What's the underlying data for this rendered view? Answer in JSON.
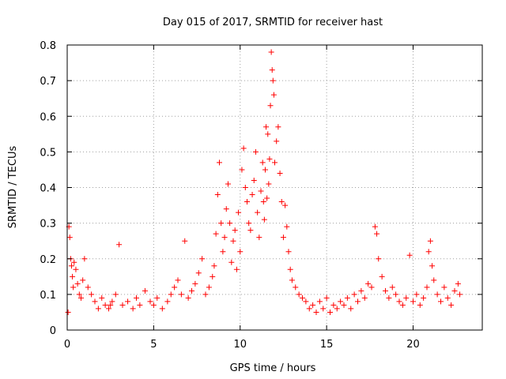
{
  "chart_data": {
    "type": "scatter",
    "title": "Day 015 of 2017, SRMTID for receiver hast",
    "xlabel": "GPS time / hours",
    "ylabel": "SRMTID / TECUs",
    "xlim": [
      0,
      24
    ],
    "ylim": [
      0,
      0.8
    ],
    "x_ticks": [
      0,
      5,
      10,
      15,
      20
    ],
    "x_tick_labels": [
      "0",
      "5",
      "10",
      "15",
      "20"
    ],
    "y_ticks": [
      0,
      0.1,
      0.2,
      0.3,
      0.4,
      0.5,
      0.6,
      0.7,
      0.8
    ],
    "y_tick_labels": [
      "0",
      "0.1",
      "0.2",
      "0.3",
      "0.4",
      "0.5",
      "0.6",
      "0.7",
      "0.8"
    ],
    "grid": true,
    "marker": "plus",
    "color": "#ff0000",
    "series": [
      {
        "name": "SRMTID",
        "x": [
          0.05,
          0.1,
          0.15,
          0.2,
          0.25,
          0.3,
          0.35,
          0.4,
          0.5,
          0.6,
          0.7,
          0.8,
          0.9,
          1.0,
          1.2,
          1.4,
          1.6,
          1.8,
          2.0,
          2.2,
          2.4,
          2.5,
          2.6,
          2.8,
          3.0,
          3.2,
          3.5,
          3.8,
          4.0,
          4.2,
          4.5,
          4.8,
          5.0,
          5.2,
          5.5,
          5.8,
          6.0,
          6.2,
          6.4,
          6.6,
          6.8,
          7.0,
          7.2,
          7.4,
          7.6,
          7.8,
          8.0,
          8.2,
          8.4,
          8.5,
          8.6,
          8.7,
          8.8,
          8.9,
          9.0,
          9.1,
          9.2,
          9.3,
          9.4,
          9.5,
          9.6,
          9.7,
          9.8,
          9.9,
          10.0,
          10.1,
          10.2,
          10.3,
          10.4,
          10.5,
          10.6,
          10.7,
          10.8,
          10.9,
          11.0,
          11.1,
          11.2,
          11.3,
          11.35,
          11.4,
          11.45,
          11.5,
          11.55,
          11.6,
          11.65,
          11.7,
          11.75,
          11.8,
          11.85,
          11.9,
          11.95,
          12.0,
          12.1,
          12.2,
          12.3,
          12.4,
          12.5,
          12.6,
          12.7,
          12.8,
          12.9,
          13.0,
          13.2,
          13.4,
          13.6,
          13.8,
          14.0,
          14.2,
          14.4,
          14.6,
          14.8,
          15.0,
          15.2,
          15.4,
          15.6,
          15.8,
          16.0,
          16.2,
          16.4,
          16.6,
          16.8,
          17.0,
          17.2,
          17.4,
          17.6,
          17.8,
          17.9,
          18.0,
          18.2,
          18.4,
          18.6,
          18.8,
          19.0,
          19.2,
          19.4,
          19.6,
          19.8,
          20.0,
          20.2,
          20.4,
          20.6,
          20.8,
          20.9,
          21.0,
          21.1,
          21.2,
          21.4,
          21.6,
          21.8,
          22.0,
          22.2,
          22.4,
          22.6,
          22.7
        ],
        "y": [
          0.05,
          0.29,
          0.26,
          0.2,
          0.18,
          0.15,
          0.12,
          0.19,
          0.17,
          0.13,
          0.1,
          0.09,
          0.14,
          0.2,
          0.12,
          0.1,
          0.08,
          0.06,
          0.09,
          0.07,
          0.06,
          0.07,
          0.08,
          0.1,
          0.24,
          0.07,
          0.08,
          0.06,
          0.09,
          0.07,
          0.11,
          0.08,
          0.07,
          0.09,
          0.06,
          0.08,
          0.1,
          0.12,
          0.14,
          0.1,
          0.25,
          0.09,
          0.11,
          0.13,
          0.16,
          0.2,
          0.1,
          0.12,
          0.15,
          0.18,
          0.27,
          0.38,
          0.47,
          0.3,
          0.22,
          0.26,
          0.34,
          0.41,
          0.3,
          0.19,
          0.25,
          0.28,
          0.17,
          0.33,
          0.22,
          0.45,
          0.51,
          0.4,
          0.36,
          0.3,
          0.28,
          0.38,
          0.42,
          0.5,
          0.33,
          0.26,
          0.39,
          0.47,
          0.36,
          0.31,
          0.45,
          0.57,
          0.37,
          0.55,
          0.41,
          0.48,
          0.63,
          0.78,
          0.73,
          0.7,
          0.66,
          0.47,
          0.53,
          0.57,
          0.44,
          0.36,
          0.26,
          0.35,
          0.29,
          0.22,
          0.17,
          0.14,
          0.12,
          0.1,
          0.09,
          0.08,
          0.06,
          0.07,
          0.05,
          0.08,
          0.06,
          0.09,
          0.05,
          0.07,
          0.06,
          0.08,
          0.07,
          0.09,
          0.06,
          0.1,
          0.08,
          0.11,
          0.09,
          0.13,
          0.12,
          0.29,
          0.27,
          0.2,
          0.15,
          0.11,
          0.09,
          0.12,
          0.1,
          0.08,
          0.07,
          0.09,
          0.21,
          0.08,
          0.1,
          0.07,
          0.09,
          0.12,
          0.22,
          0.25,
          0.18,
          0.14,
          0.1,
          0.08,
          0.12,
          0.09,
          0.07,
          0.11,
          0.13,
          0.1
        ]
      }
    ]
  }
}
